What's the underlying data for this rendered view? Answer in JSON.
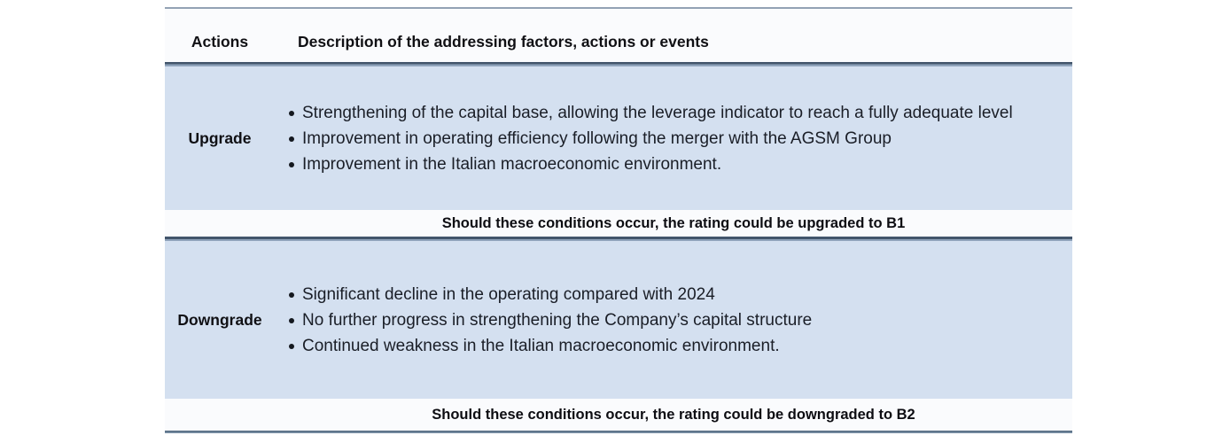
{
  "table": {
    "header": {
      "actions_label": "Actions",
      "description_label": "Description of the addressing factors, actions or events"
    },
    "upgrade": {
      "label": "Upgrade",
      "bullets": [
        "Strengthening of the capital base, allowing the leverage indicator to reach a fully adequate level",
        "Improvement in operating efficiency following the merger with the AGSM Group",
        "Improvement in the Italian macroeconomic environment."
      ],
      "note": "Should these conditions occur, the rating could be upgraded to B1"
    },
    "downgrade": {
      "label": "Downgrade",
      "bullets": [
        "Significant decline in the operating  compared with 2024",
        "No further progress in strengthening the Company’s capital structure",
        "Continued weakness in the Italian macroeconomic environment."
      ],
      "note": "Should these conditions occur, the rating could be downgraded to B2"
    },
    "colors": {
      "row_highlight": "#d4e0f0",
      "light_row": "#fafbfd",
      "border_dark": "#42556b",
      "border_light": "#8fa3bb"
    }
  }
}
